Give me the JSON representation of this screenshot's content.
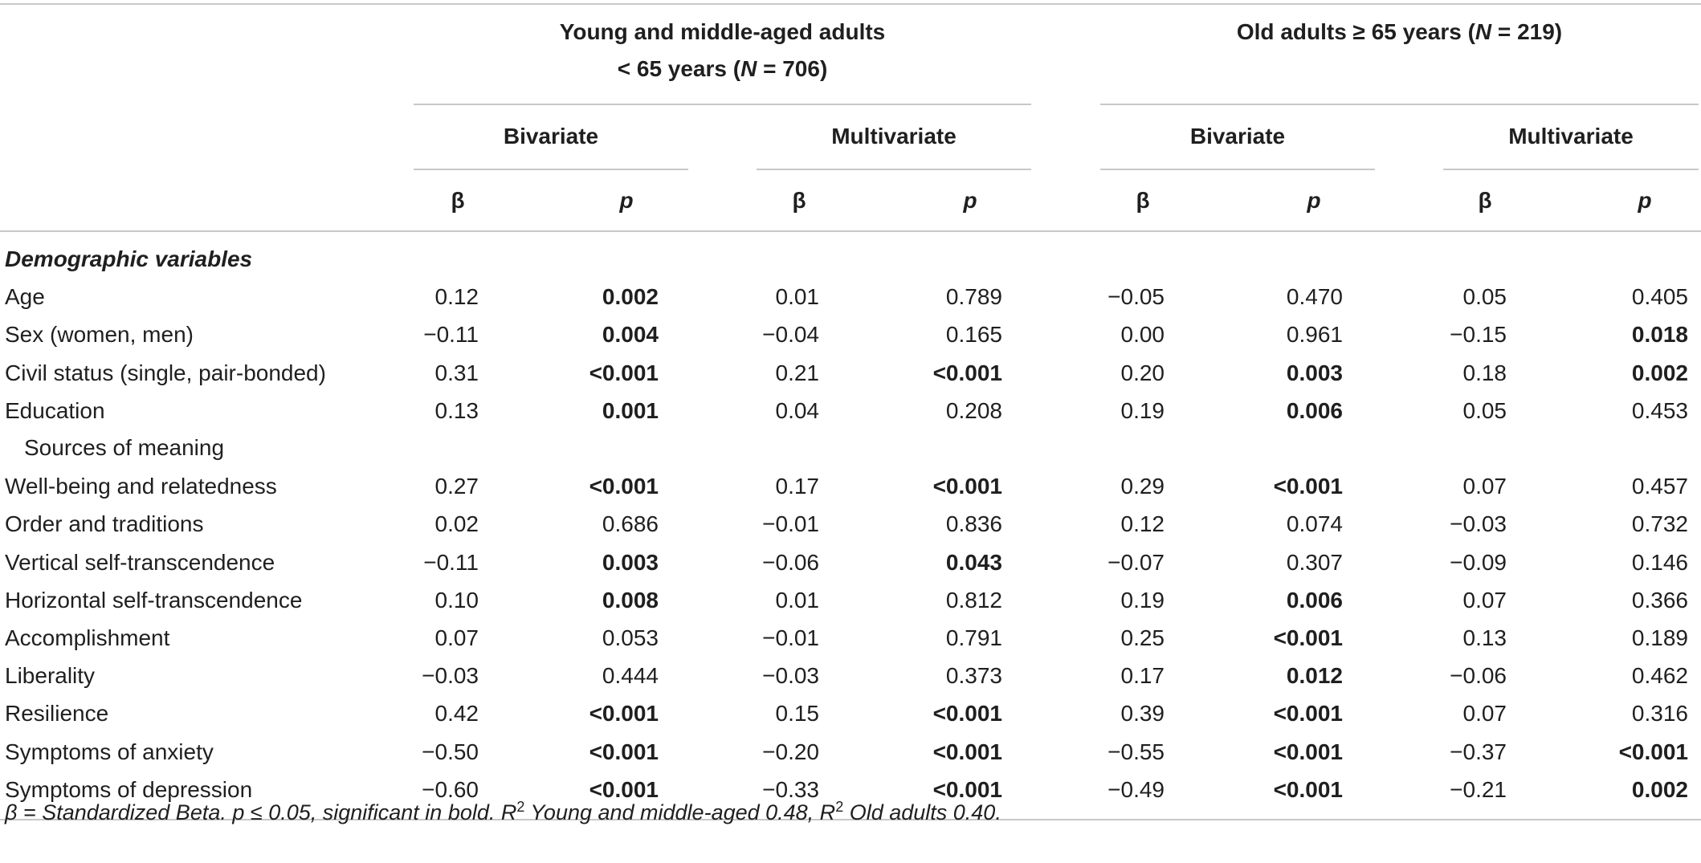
{
  "table": {
    "groups": [
      {
        "line1": "Young and middle-aged adults",
        "line2": "< 65 years (",
        "n_label": "N",
        "n_value": " = 706)"
      },
      {
        "line1": "Old adults ≥ 65 years (",
        "n_label": "N",
        "n_value": " = 219)"
      }
    ],
    "subgroups": [
      "Bivariate",
      "Multivariate",
      "Bivariate",
      "Multivariate"
    ],
    "stat_headers": {
      "beta": "β",
      "p": "p"
    },
    "section_title": "Demographic variables",
    "subsection_title": "Sources of meaning",
    "rows": [
      {
        "label": "Age",
        "cells": [
          {
            "v": "0.12"
          },
          {
            "v": "0.002",
            "b": true
          },
          {
            "v": "0.01"
          },
          {
            "v": "0.789"
          },
          {
            "v": "−0.05"
          },
          {
            "v": "0.470"
          },
          {
            "v": "0.05"
          },
          {
            "v": "0.405"
          }
        ]
      },
      {
        "label": "Sex (women, men)",
        "cells": [
          {
            "v": "−0.11"
          },
          {
            "v": "0.004",
            "b": true
          },
          {
            "v": "−0.04"
          },
          {
            "v": "0.165"
          },
          {
            "v": "0.00"
          },
          {
            "v": "0.961"
          },
          {
            "v": "−0.15"
          },
          {
            "v": "0.018",
            "b": true
          }
        ]
      },
      {
        "label": "Civil status (single, pair-bonded)",
        "cells": [
          {
            "v": "0.31"
          },
          {
            "v": "<0.001",
            "b": true
          },
          {
            "v": "0.21"
          },
          {
            "v": "<0.001",
            "b": true
          },
          {
            "v": "0.20"
          },
          {
            "v": "0.003",
            "b": true
          },
          {
            "v": "0.18"
          },
          {
            "v": "0.002",
            "b": true
          }
        ]
      },
      {
        "label": "Education",
        "cells": [
          {
            "v": "0.13"
          },
          {
            "v": "0.001",
            "b": true
          },
          {
            "v": "0.04"
          },
          {
            "v": "0.208"
          },
          {
            "v": "0.19"
          },
          {
            "v": "0.006",
            "b": true
          },
          {
            "v": "0.05"
          },
          {
            "v": "0.453"
          }
        ]
      },
      {
        "label": "Well-being and relatedness",
        "cells": [
          {
            "v": "0.27"
          },
          {
            "v": "<0.001",
            "b": true
          },
          {
            "v": "0.17"
          },
          {
            "v": "<0.001",
            "b": true
          },
          {
            "v": "0.29"
          },
          {
            "v": "<0.001",
            "b": true
          },
          {
            "v": "0.07"
          },
          {
            "v": "0.457"
          }
        ]
      },
      {
        "label": "Order and traditions",
        "cells": [
          {
            "v": "0.02"
          },
          {
            "v": "0.686"
          },
          {
            "v": "−0.01"
          },
          {
            "v": "0.836"
          },
          {
            "v": "0.12"
          },
          {
            "v": "0.074"
          },
          {
            "v": "−0.03"
          },
          {
            "v": "0.732"
          }
        ]
      },
      {
        "label": "Vertical self-transcendence",
        "cells": [
          {
            "v": "−0.11"
          },
          {
            "v": "0.003",
            "b": true
          },
          {
            "v": "−0.06"
          },
          {
            "v": "0.043",
            "b": true
          },
          {
            "v": "−0.07"
          },
          {
            "v": "0.307"
          },
          {
            "v": "−0.09"
          },
          {
            "v": "0.146"
          }
        ]
      },
      {
        "label": "Horizontal self-transcendence",
        "cells": [
          {
            "v": "0.10"
          },
          {
            "v": "0.008",
            "b": true
          },
          {
            "v": "0.01"
          },
          {
            "v": "0.812"
          },
          {
            "v": "0.19"
          },
          {
            "v": "0.006",
            "b": true
          },
          {
            "v": "0.07"
          },
          {
            "v": "0.366"
          }
        ]
      },
      {
        "label": "Accomplishment",
        "cells": [
          {
            "v": "0.07"
          },
          {
            "v": "0.053"
          },
          {
            "v": "−0.01"
          },
          {
            "v": "0.791"
          },
          {
            "v": "0.25"
          },
          {
            "v": "<0.001",
            "b": true
          },
          {
            "v": "0.13"
          },
          {
            "v": "0.189"
          }
        ]
      },
      {
        "label": "Liberality",
        "cells": [
          {
            "v": "−0.03"
          },
          {
            "v": "0.444"
          },
          {
            "v": "−0.03"
          },
          {
            "v": "0.373"
          },
          {
            "v": "0.17"
          },
          {
            "v": "0.012",
            "b": true
          },
          {
            "v": "−0.06"
          },
          {
            "v": "0.462"
          }
        ]
      },
      {
        "label": "Resilience",
        "cells": [
          {
            "v": "0.42"
          },
          {
            "v": "<0.001",
            "b": true
          },
          {
            "v": "0.15"
          },
          {
            "v": "<0.001",
            "b": true
          },
          {
            "v": "0.39"
          },
          {
            "v": "<0.001",
            "b": true
          },
          {
            "v": "0.07"
          },
          {
            "v": "0.316"
          }
        ]
      },
      {
        "label": "Symptoms of anxiety",
        "cells": [
          {
            "v": "−0.50"
          },
          {
            "v": "<0.001",
            "b": true
          },
          {
            "v": "−0.20"
          },
          {
            "v": "<0.001",
            "b": true
          },
          {
            "v": "−0.55"
          },
          {
            "v": "<0.001",
            "b": true
          },
          {
            "v": "−0.37"
          },
          {
            "v": "<0.001",
            "b": true
          }
        ]
      },
      {
        "label": "Symptoms of depression",
        "cells": [
          {
            "v": "−0.60"
          },
          {
            "v": "<0.001",
            "b": true
          },
          {
            "v": "−0.33"
          },
          {
            "v": "<0.001",
            "b": true
          },
          {
            "v": "−0.49"
          },
          {
            "v": "<0.001",
            "b": true
          },
          {
            "v": "−0.21"
          },
          {
            "v": "0.002",
            "b": true
          }
        ]
      }
    ]
  },
  "footnote": {
    "part1": "β = Standardized Beta. p ≤ 0.05, significant in bold. R",
    "sup1": "2",
    "part2": " Young and middle-aged 0.48, R",
    "sup2": "2",
    "part3": " Old adults 0.40."
  }
}
